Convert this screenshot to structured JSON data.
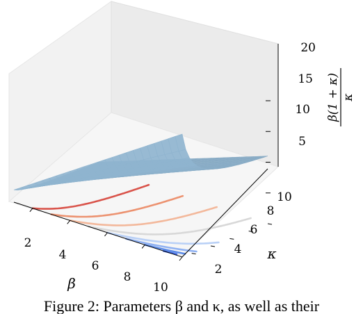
{
  "chart_data": {
    "type": "surface3d",
    "xlabel": "β",
    "ylabel": "κ",
    "zlabel": {
      "numerator": "β(1 + κ)",
      "denominator": "κ"
    },
    "xlim": [
      1,
      10
    ],
    "ylim": [
      1,
      10
    ],
    "zlim": [
      0,
      20
    ],
    "xticks": [
      "2",
      "4",
      "6",
      "8",
      "10"
    ],
    "yticks": [
      "2",
      "4",
      "6",
      "8",
      "10"
    ],
    "zticks": [
      "5",
      "10",
      "15",
      "20"
    ],
    "surface_color": "#8fb4cf",
    "contour_levels": [
      {
        "level": 18,
        "color": "#4169e1"
      },
      {
        "level": 16,
        "color": "#5b8be8"
      },
      {
        "level": 14,
        "color": "#8fb1f2"
      },
      {
        "level": 12,
        "color": "#b9d0f6"
      },
      {
        "level": 10,
        "color": "#d8d8d8"
      },
      {
        "level": 8,
        "color": "#f3b89b"
      },
      {
        "level": 6,
        "color": "#ec9270"
      },
      {
        "level": 4,
        "color": "#d9534a"
      }
    ]
  },
  "caption": "Figure 2: Parameters β and κ, as well as their"
}
